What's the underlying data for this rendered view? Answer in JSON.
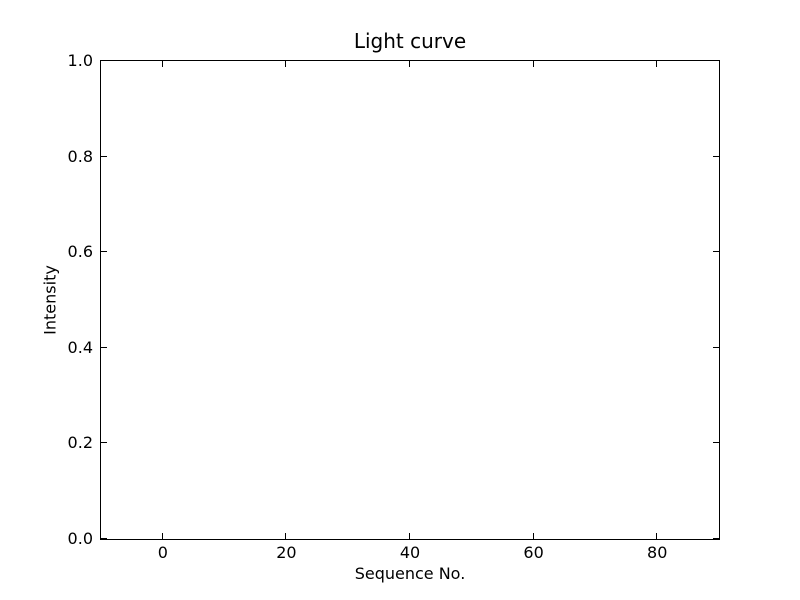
{
  "figure": {
    "background_color": "#ffffff",
    "axes_line_color": "#000000",
    "text_color": "#000000"
  },
  "chart_data": {
    "type": "line",
    "title": "Light curve",
    "xlabel": "Sequence No.",
    "ylabel": "Intensity",
    "xlim": [
      -10,
      90
    ],
    "ylim": [
      0.0,
      1.0
    ],
    "xticks": {
      "values": [
        0,
        20,
        40,
        60,
        80
      ],
      "labels": [
        "0",
        "20",
        "40",
        "60",
        "80"
      ]
    },
    "yticks": {
      "values": [
        0.0,
        0.2,
        0.4,
        0.6,
        0.8,
        1.0
      ],
      "labels": [
        "0.0",
        "0.2",
        "0.4",
        "0.6",
        "0.8",
        "1.0"
      ]
    },
    "series": [],
    "grid": false,
    "legend_position": "none",
    "tick_direction": "in",
    "ticks_on_all_spines": true
  }
}
